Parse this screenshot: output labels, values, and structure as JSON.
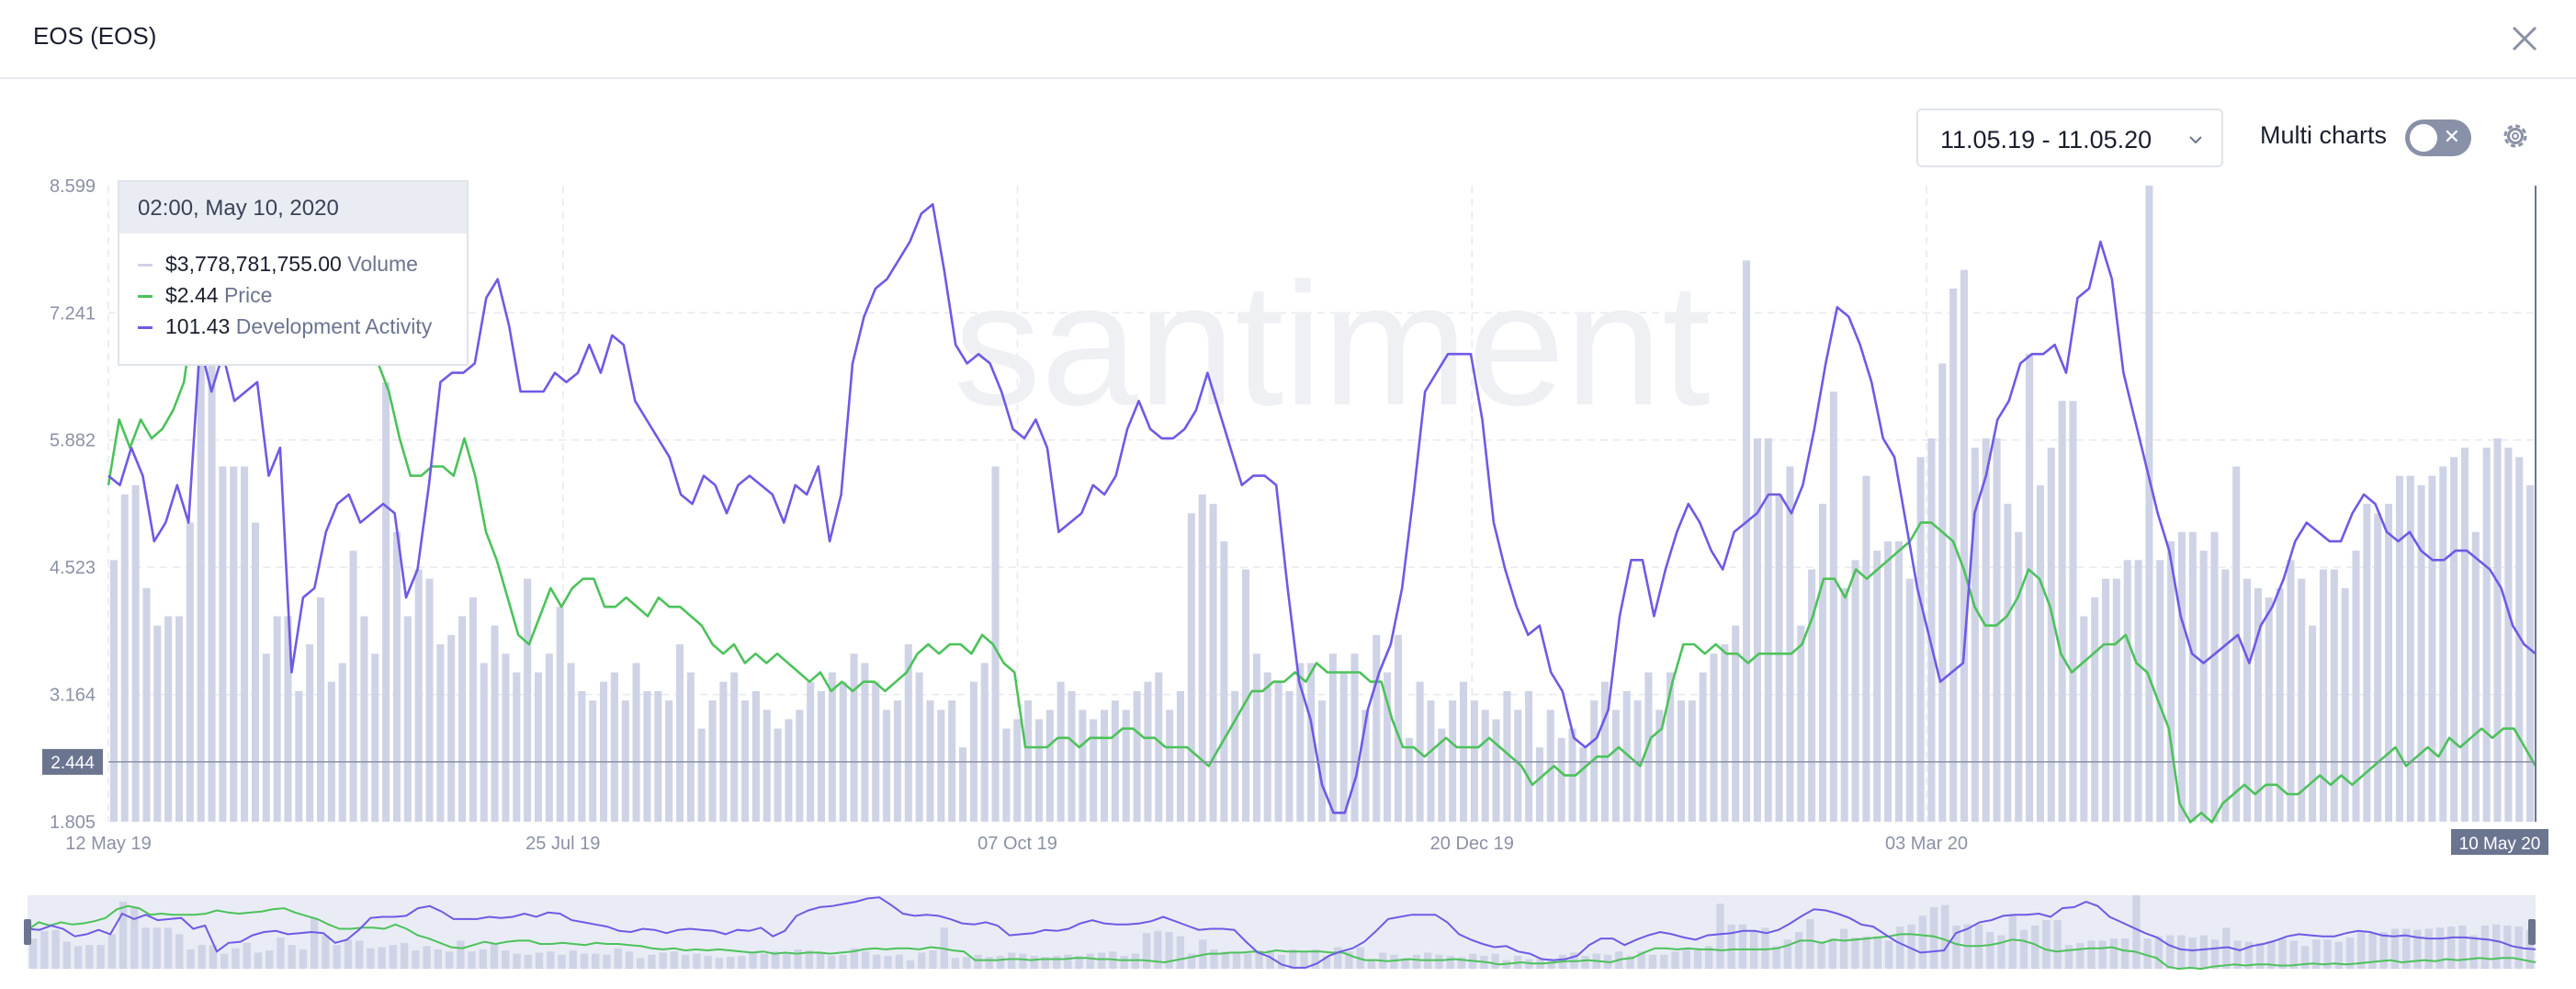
{
  "header": {
    "title": "EOS (EOS)"
  },
  "toolbar": {
    "date_range": "11.05.19 - 11.05.20",
    "multi_charts_label": "Multi charts",
    "multi_charts_on": false
  },
  "tooltip": {
    "date": "02:00, May 10, 2020",
    "rows": [
      {
        "value": "$3,778,781,755.00",
        "name": "Volume",
        "color": "#cfd3e6"
      },
      {
        "value": "$2.44",
        "name": "Price",
        "color": "#4cc25a"
      },
      {
        "value": "101.43",
        "name": "Development Activity",
        "color": "#6e5ae6"
      }
    ]
  },
  "chart_data": {
    "type": "line",
    "watermark": "santiment",
    "y_ticks": [
      "8.599",
      "7.241",
      "5.882",
      "4.523",
      "3.164",
      "1.805"
    ],
    "ylim": [
      1.805,
      8.599
    ],
    "current_value_label": "2.444",
    "current_value": 2.444,
    "x_ticks": [
      "12 May 19",
      "25 Jul 19",
      "07 Oct 19",
      "20 Dec 19",
      "03 Mar 20"
    ],
    "x_end_label": "10 May 20",
    "series": [
      {
        "name": "Volume",
        "type": "bar",
        "color": "#cfd3e6",
        "values": [
          4.6,
          5.3,
          5.4,
          4.3,
          3.9,
          4.0,
          4.0,
          5.0,
          8.0,
          7.4,
          5.6,
          5.6,
          5.6,
          5.0,
          3.6,
          4.0,
          4.0,
          3.2,
          3.7,
          4.2,
          3.3,
          3.5,
          4.7,
          4.0,
          3.6,
          6.5,
          4.9,
          4.0,
          4.5,
          4.4,
          3.7,
          3.8,
          4.0,
          4.2,
          3.5,
          3.9,
          3.6,
          3.4,
          4.4,
          3.4,
          3.6,
          4.1,
          3.5,
          3.2,
          3.1,
          3.3,
          3.4,
          3.1,
          3.5,
          3.2,
          3.2,
          3.1,
          3.7,
          3.4,
          2.8,
          3.1,
          3.3,
          3.4,
          3.1,
          3.2,
          3.0,
          2.8,
          2.9,
          3.0,
          3.3,
          3.2,
          3.4,
          3.3,
          3.6,
          3.5,
          3.3,
          3.0,
          3.1,
          3.7,
          3.4,
          3.1,
          3.0,
          3.1,
          2.6,
          3.3,
          3.5,
          5.6,
          2.8,
          2.9,
          3.1,
          2.9,
          3.0,
          3.3,
          3.2,
          3.0,
          2.9,
          3.0,
          3.1,
          3.0,
          3.2,
          3.3,
          3.4,
          3.0,
          3.2,
          5.1,
          5.3,
          5.2,
          4.8,
          3.2,
          4.5,
          3.6,
          3.4,
          3.3,
          3.2,
          3.5,
          3.5,
          3.1,
          3.6,
          3.4,
          3.6,
          3.0,
          3.8,
          3.4,
          3.8,
          2.7,
          3.3,
          3.1,
          2.8,
          3.1,
          3.3,
          3.1,
          3.0,
          2.9,
          3.2,
          3.0,
          3.2,
          2.6,
          3.0,
          2.7,
          2.8,
          2.6,
          3.1,
          3.3,
          3.0,
          3.2,
          3.1,
          3.4,
          3.0,
          3.4,
          3.1,
          3.1,
          3.4,
          3.6,
          3.7,
          3.9,
          7.8,
          5.9,
          5.9,
          5.3,
          5.6,
          3.9,
          4.5,
          5.2,
          6.4,
          4.3,
          4.6,
          5.5,
          4.7,
          4.8,
          4.8,
          4.4,
          5.7,
          5.9,
          6.7,
          7.5,
          7.7,
          5.8,
          5.9,
          5.9,
          5.2,
          4.9,
          6.8,
          5.4,
          5.8,
          6.3,
          6.3,
          4.0,
          4.2,
          4.4,
          4.4,
          4.6,
          4.6,
          8.6,
          4.6,
          4.8,
          4.9,
          4.9,
          4.7,
          4.9,
          4.5,
          5.6,
          4.4,
          4.3,
          4.2,
          4.3,
          4.6,
          4.4,
          3.9,
          4.5,
          4.5,
          4.3,
          4.7,
          5.2,
          5.1,
          5.2,
          5.5,
          5.5,
          5.4,
          5.5,
          5.6,
          5.7,
          5.8,
          4.9,
          5.8,
          5.9,
          5.8,
          5.7,
          5.4
        ]
      },
      {
        "name": "Price",
        "type": "line",
        "color": "#4cc25a",
        "values": [
          5.4,
          6.1,
          5.8,
          6.1,
          5.9,
          6.0,
          6.2,
          6.5,
          7.3,
          7.6,
          7.4,
          6.8,
          6.9,
          6.8,
          6.8,
          6.8,
          6.9,
          7.2,
          7.0,
          6.9,
          7.0,
          7.1,
          7.3,
          7.4,
          7.0,
          6.7,
          6.4,
          5.9,
          5.5,
          5.5,
          5.6,
          5.6,
          5.5,
          5.9,
          5.5,
          4.9,
          4.6,
          4.2,
          3.8,
          3.7,
          4.0,
          4.3,
          4.1,
          4.3,
          4.4,
          4.4,
          4.1,
          4.1,
          4.2,
          4.1,
          4.0,
          4.2,
          4.1,
          4.1,
          4.0,
          3.9,
          3.7,
          3.6,
          3.7,
          3.5,
          3.6,
          3.5,
          3.6,
          3.5,
          3.4,
          3.3,
          3.4,
          3.2,
          3.3,
          3.2,
          3.3,
          3.3,
          3.2,
          3.3,
          3.4,
          3.6,
          3.7,
          3.6,
          3.7,
          3.7,
          3.6,
          3.8,
          3.7,
          3.5,
          3.4,
          2.6,
          2.6,
          2.6,
          2.7,
          2.7,
          2.6,
          2.7,
          2.7,
          2.7,
          2.8,
          2.8,
          2.7,
          2.7,
          2.6,
          2.6,
          2.6,
          2.5,
          2.4,
          2.6,
          2.8,
          3.0,
          3.2,
          3.2,
          3.3,
          3.3,
          3.4,
          3.3,
          3.5,
          3.4,
          3.4,
          3.4,
          3.4,
          3.3,
          3.3,
          2.9,
          2.6,
          2.6,
          2.5,
          2.6,
          2.7,
          2.6,
          2.6,
          2.6,
          2.7,
          2.6,
          2.5,
          2.4,
          2.2,
          2.3,
          2.4,
          2.3,
          2.3,
          2.4,
          2.5,
          2.5,
          2.6,
          2.5,
          2.4,
          2.7,
          2.8,
          3.3,
          3.7,
          3.7,
          3.6,
          3.7,
          3.6,
          3.6,
          3.5,
          3.6,
          3.6,
          3.6,
          3.6,
          3.7,
          4.0,
          4.4,
          4.4,
          4.2,
          4.5,
          4.4,
          4.5,
          4.6,
          4.7,
          4.8,
          5.0,
          5.0,
          4.9,
          4.8,
          4.5,
          4.1,
          3.9,
          3.9,
          4.0,
          4.2,
          4.5,
          4.4,
          4.1,
          3.6,
          3.4,
          3.5,
          3.6,
          3.7,
          3.7,
          3.8,
          3.5,
          3.4,
          3.1,
          2.8,
          2.0,
          1.8,
          1.9,
          1.8,
          2.0,
          2.1,
          2.2,
          2.1,
          2.2,
          2.2,
          2.1,
          2.1,
          2.2,
          2.3,
          2.2,
          2.3,
          2.2,
          2.3,
          2.4,
          2.5,
          2.6,
          2.4,
          2.5,
          2.6,
          2.5,
          2.7,
          2.6,
          2.7,
          2.8,
          2.7,
          2.8,
          2.8,
          2.6,
          2.4
        ]
      },
      {
        "name": "Development Activity",
        "type": "line",
        "color": "#6e5ae6",
        "values": [
          5.5,
          5.4,
          5.8,
          5.5,
          4.8,
          5.0,
          5.4,
          5.0,
          6.9,
          6.4,
          6.8,
          6.3,
          6.4,
          6.5,
          5.5,
          5.8,
          3.4,
          4.2,
          4.3,
          4.9,
          5.2,
          5.3,
          5.0,
          5.1,
          5.2,
          5.1,
          4.2,
          4.5,
          5.4,
          6.5,
          6.6,
          6.6,
          6.7,
          7.4,
          7.6,
          7.1,
          6.4,
          6.4,
          6.4,
          6.6,
          6.5,
          6.6,
          6.9,
          6.6,
          7.0,
          6.9,
          6.3,
          6.1,
          5.9,
          5.7,
          5.3,
          5.2,
          5.5,
          5.4,
          5.1,
          5.4,
          5.5,
          5.4,
          5.3,
          5.0,
          5.4,
          5.3,
          5.6,
          4.8,
          5.3,
          6.7,
          7.2,
          7.5,
          7.6,
          7.8,
          8.0,
          8.3,
          8.4,
          7.7,
          6.9,
          6.7,
          6.8,
          6.7,
          6.4,
          6.0,
          5.9,
          6.1,
          5.8,
          4.9,
          5.0,
          5.1,
          5.4,
          5.3,
          5.5,
          6.0,
          6.3,
          6.0,
          5.9,
          5.9,
          6.0,
          6.2,
          6.6,
          6.2,
          5.8,
          5.4,
          5.5,
          5.5,
          5.4,
          4.3,
          3.3,
          2.9,
          2.2,
          1.9,
          1.9,
          2.3,
          3.0,
          3.4,
          3.7,
          4.3,
          5.3,
          6.4,
          6.6,
          6.8,
          6.8,
          6.8,
          6.1,
          5.0,
          4.5,
          4.1,
          3.8,
          3.9,
          3.4,
          3.2,
          2.7,
          2.6,
          2.7,
          3.0,
          4.0,
          4.6,
          4.6,
          4.0,
          4.5,
          4.9,
          5.2,
          5.0,
          4.7,
          4.5,
          4.9,
          5.0,
          5.1,
          5.3,
          5.3,
          5.1,
          5.4,
          6.0,
          6.7,
          7.3,
          7.2,
          6.9,
          6.5,
          5.9,
          5.7,
          5.0,
          4.3,
          3.8,
          3.3,
          3.4,
          3.5,
          5.1,
          5.5,
          6.1,
          6.3,
          6.7,
          6.8,
          6.8,
          6.9,
          6.6,
          7.4,
          7.5,
          8.0,
          7.6,
          6.6,
          6.1,
          5.6,
          5.1,
          4.7,
          4.0,
          3.6,
          3.5,
          3.6,
          3.7,
          3.8,
          3.5,
          3.9,
          4.1,
          4.4,
          4.8,
          5.0,
          4.9,
          4.8,
          4.8,
          5.1,
          5.3,
          5.2,
          4.9,
          4.8,
          4.9,
          4.7,
          4.6,
          4.6,
          4.7,
          4.7,
          4.6,
          4.5,
          4.3,
          3.9,
          3.7,
          3.6
        ]
      }
    ]
  }
}
